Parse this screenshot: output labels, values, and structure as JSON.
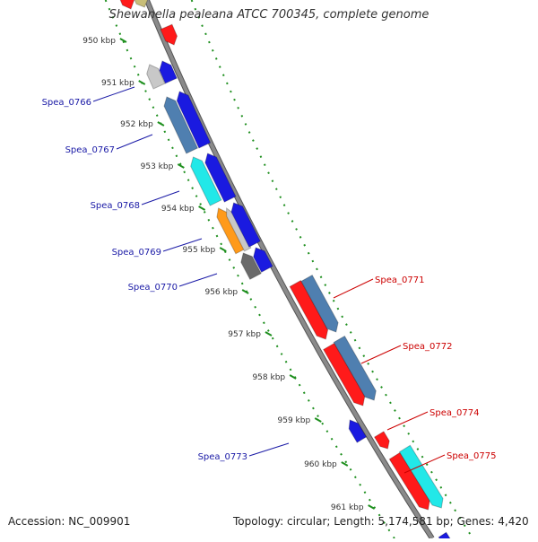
{
  "title": "Shewanella pealeana ATCC 700345, complete genome",
  "accession": "Accession: NC_009901",
  "summary": "Topology: circular; Length: 5,174,581 bp; Genes: 4,420",
  "kbp_ticks": [
    "950 kbp",
    "951 kbp",
    "952 kbp",
    "953 kbp",
    "954 kbp",
    "955 kbp",
    "956 kbp",
    "957 kbp",
    "958 kbp",
    "959 kbp",
    "960 kbp",
    "961 kbp"
  ],
  "left_gene_labels": [
    "Spea_0766",
    "Spea_0767",
    "Spea_0768",
    "Spea_0769",
    "Spea_0770",
    "Spea_0773"
  ],
  "right_gene_labels": [
    "Spea_0771",
    "Spea_0772",
    "Spea_0774",
    "Spea_0775"
  ],
  "colors": {
    "backbone": "#8a8a8a",
    "tick_green": "#1e8f1e",
    "left_label": "#1a1aa6",
    "right_label": "#cc0000",
    "red": "#ff1a1a",
    "steelblue": "#4f7fb0",
    "blue": "#1a1ae0",
    "cyan": "#22e8e8",
    "orange": "#ff9a1a",
    "silver": "#c8c8c8",
    "darkgray": "#6a6a6a",
    "olive": "#c8be78"
  }
}
